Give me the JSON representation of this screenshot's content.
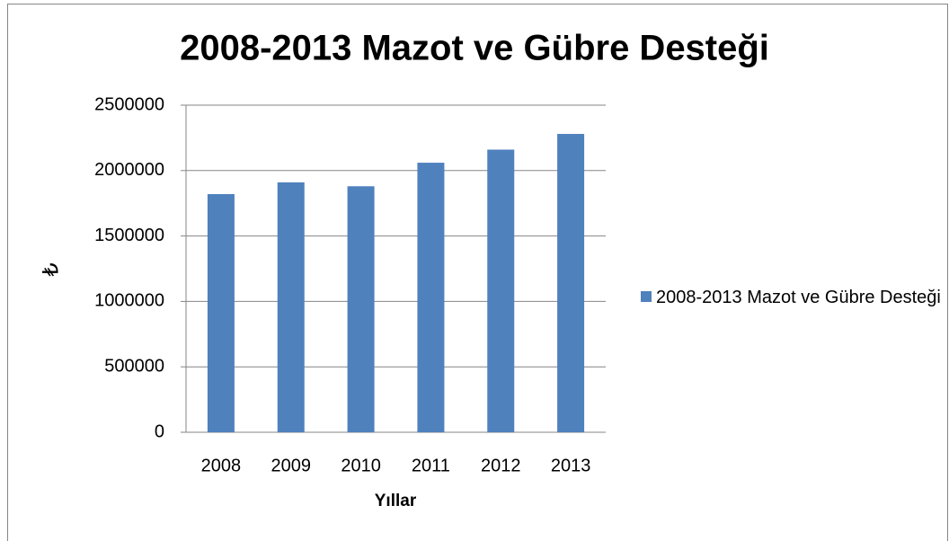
{
  "chart_data": {
    "type": "bar",
    "title": "2008-2013 Mazot ve Gübre Desteği",
    "x_label": "Yıllar",
    "y_label": "₺",
    "categories": [
      "2008",
      "2009",
      "2010",
      "2011",
      "2012",
      "2013"
    ],
    "series": [
      {
        "name": "2008-2013 Mazot ve Gübre Desteği",
        "color": "#4f81bd",
        "values": [
          1820000,
          1910000,
          1880000,
          2060000,
          2160000,
          2280000
        ]
      }
    ],
    "ylim": [
      0,
      2500000
    ],
    "yticks": [
      0,
      500000,
      1000000,
      1500000,
      2000000,
      2500000
    ],
    "grid": true,
    "legend": "right"
  }
}
